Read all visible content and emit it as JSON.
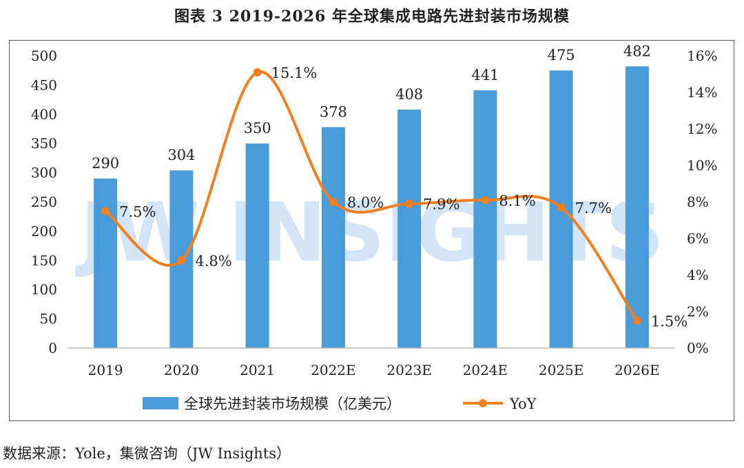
{
  "title": "图表 3 2019-2026 年全球集成电路先进封装市场规模",
  "source": "数据来源：Yole，集微咨询（JW Insights）",
  "watermark": "JW INSIGHTS",
  "colors": {
    "bar": "#4a9bd9",
    "line": "#f07f1f",
    "axis": "#bbbbbb"
  },
  "chart_data": {
    "type": "bar+line",
    "categories": [
      "2019",
      "2020",
      "2021",
      "2022E",
      "2023E",
      "2024E",
      "2025E",
      "2026E"
    ],
    "series": [
      {
        "name": "全球先进封装市场规模（亿美元）",
        "type": "bar",
        "axis": "left",
        "values": [
          290,
          304,
          350,
          378,
          408,
          441,
          475,
          482
        ],
        "labels": [
          "290",
          "304",
          "350",
          "378",
          "408",
          "441",
          "475",
          "482"
        ]
      },
      {
        "name": "YoY",
        "type": "line",
        "axis": "right",
        "values": [
          7.5,
          4.8,
          15.1,
          8.0,
          7.9,
          8.1,
          7.7,
          1.5
        ],
        "labels": [
          "7.5%",
          "4.8%",
          "15.1%",
          "8.0%",
          "7.9%",
          "8.1%",
          "7.7%",
          "1.5%"
        ]
      }
    ],
    "y_left": {
      "min": 0,
      "max": 500,
      "ticks": [
        "0",
        "50",
        "100",
        "150",
        "200",
        "250",
        "300",
        "350",
        "400",
        "450",
        "500"
      ]
    },
    "y_right": {
      "min": 0,
      "max": 16,
      "ticks": [
        "0%",
        "2%",
        "4%",
        "6%",
        "8%",
        "10%",
        "12%",
        "14%",
        "16%"
      ]
    },
    "grid": false,
    "legend": "bottom-center"
  }
}
